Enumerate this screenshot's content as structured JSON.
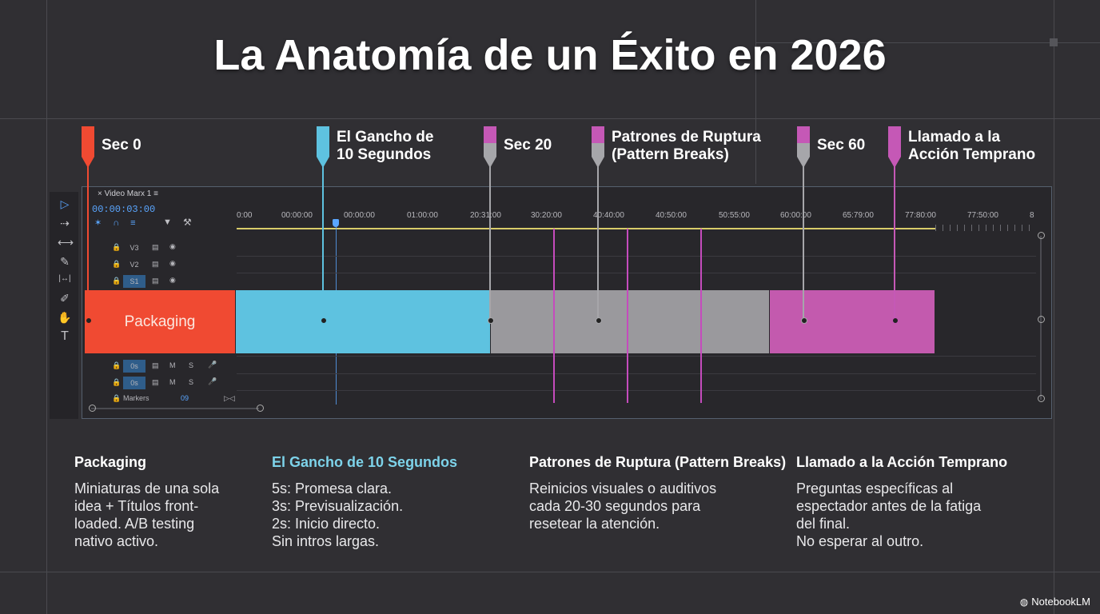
{
  "title": "La Anatomía de un Éxito en 2026",
  "markers": [
    {
      "label": "Sec 0",
      "color": "#f04a32"
    },
    {
      "label": "El Gancho de\n10 Segundos",
      "color": "#5ec2e0"
    },
    {
      "label": "Sec 20",
      "color": "#a6a6aa"
    },
    {
      "label": "Patrones de Ruptura\n(Pattern Breaks)",
      "color": "#a6a6aa"
    },
    {
      "label": "Sec 60",
      "color": "#a6a6aa"
    },
    {
      "label": "Llamado a la\nAcción Temprano",
      "color": "#c558b6"
    }
  ],
  "editor": {
    "sequence_name": "Video Marx 1",
    "timecode": "00:00:03:00",
    "ruler": [
      "0:00",
      "00:00:00",
      "00:00:00",
      "01:00:00",
      "20:31:00",
      "30:20:00",
      "40:40:00",
      "40:50:00",
      "50:55:00",
      "60:00:00",
      "65:79:00",
      "77:80:00",
      "77:50:00",
      "8"
    ],
    "video_tracks": [
      "V3",
      "V2",
      "S1"
    ],
    "audio_tracks": [
      "0s",
      "0s"
    ],
    "markers_label": "Markers",
    "markers_value": "09",
    "tools": [
      "selection-tool-icon",
      "track-select-icon",
      "ripple-edit-icon",
      "razor-icon",
      "slip-icon",
      "pen-icon",
      "hand-icon",
      "type-icon"
    ]
  },
  "clips": [
    {
      "label": "Packaging",
      "color": "#f04a32"
    },
    {
      "label": "",
      "color": "#5ec2e0"
    },
    {
      "label": "",
      "color": "#9a999d"
    },
    {
      "label": "",
      "color": "#c35aae"
    }
  ],
  "descriptions": [
    {
      "title": "Packaging",
      "title_color": "#ffffff",
      "body": "Miniaturas de una sola\nidea + Títulos front-\nloaded. A/B testing\nnativo activo."
    },
    {
      "title": "El Gancho de 10 Segundos",
      "title_color": "#7dd3ea",
      "body": "5s: Promesa clara.\n3s: Previsualización.\n2s: Inicio directo.\nSin intros largas."
    },
    {
      "title": "Patrones de Ruptura (Pattern Breaks)",
      "title_color": "#ffffff",
      "body": "Reinicios visuales o auditivos\ncada 20-30 segundos para\nresetear la atención."
    },
    {
      "title": "Llamado a la Acción Temprano",
      "title_color": "#ffffff",
      "body": "Preguntas específicas al\nespectador antes de la fatiga\ndel final.\nNo esperar al outro."
    }
  ],
  "brand": "NotebookLM"
}
